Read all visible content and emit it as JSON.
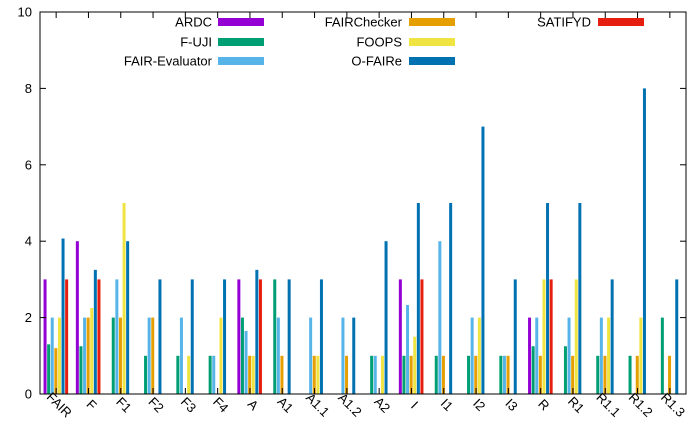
{
  "chart_data": {
    "type": "bar",
    "title": "",
    "xlabel": "",
    "ylabel": "",
    "ylim": [
      0,
      10
    ],
    "yticks": [
      0,
      2,
      4,
      6,
      8,
      10
    ],
    "grid": false,
    "legend_position": "top",
    "categories": [
      "FAIR",
      "F",
      "F1",
      "F2",
      "F3",
      "F4",
      "A",
      "A1",
      "A1.1",
      "A1.2",
      "A2",
      "I",
      "I1",
      "I2",
      "I3",
      "R",
      "R1",
      "R1.1",
      "R1.2",
      "R1.3"
    ],
    "series": [
      {
        "name": "ARDC",
        "color": "#9400d3",
        "values": [
          3,
          4,
          0,
          0,
          0,
          0,
          3,
          0,
          0,
          0,
          0,
          3,
          0,
          0,
          0,
          2,
          0,
          0,
          0,
          0
        ]
      },
      {
        "name": "F-UJI",
        "color": "#009e73",
        "values": [
          1.3,
          1.25,
          2,
          1,
          1,
          1,
          2,
          3,
          0,
          0,
          1,
          1,
          1,
          1,
          1,
          1.25,
          1.25,
          1,
          1,
          2
        ]
      },
      {
        "name": "FAIR-Evaluator",
        "color": "#56b4e9",
        "values": [
          2,
          2,
          3,
          2,
          2,
          1,
          1.65,
          2,
          2,
          2,
          1,
          2.33,
          4,
          2,
          1,
          2,
          2,
          2,
          0,
          0
        ]
      },
      {
        "name": "FAIRChecker",
        "color": "#e69f00",
        "values": [
          1.2,
          2,
          2,
          2,
          0,
          0,
          1,
          1,
          1,
          1,
          0,
          1,
          1,
          1,
          1,
          1,
          1,
          1,
          1,
          1
        ]
      },
      {
        "name": "FOOPS",
        "color": "#f0e442",
        "values": [
          2,
          2.25,
          5,
          0,
          1,
          2,
          1,
          0,
          1,
          0,
          1,
          1.5,
          0,
          2,
          0,
          3,
          3,
          2,
          2,
          0
        ]
      },
      {
        "name": "O-FAIRe",
        "color": "#0072b2",
        "values": [
          4.07,
          3.25,
          4,
          3,
          3,
          3,
          3.25,
          3,
          3,
          2,
          4,
          5,
          5,
          7,
          3,
          5,
          5,
          3,
          8,
          3
        ]
      },
      {
        "name": "SATIFYD",
        "color": "#e51e10",
        "values": [
          3,
          3,
          0,
          0,
          0,
          0,
          3,
          0,
          0,
          0,
          0,
          3,
          0,
          0,
          0,
          3,
          0,
          0,
          0,
          0
        ]
      }
    ]
  }
}
